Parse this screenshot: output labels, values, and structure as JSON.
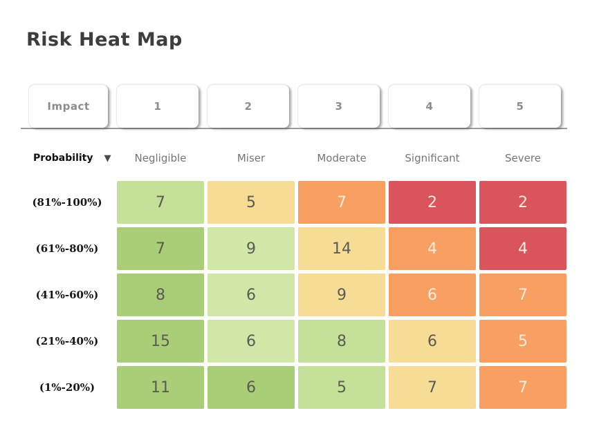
{
  "title": "Risk Heat Map",
  "tabs": [
    {
      "label": "Impact"
    },
    {
      "label": "1"
    },
    {
      "label": "2"
    },
    {
      "label": "3"
    },
    {
      "label": "4"
    },
    {
      "label": "5"
    }
  ],
  "probability": {
    "label": "Probability",
    "sort_icon": "down-triangle",
    "sort_glyph": "▼"
  },
  "colors": {
    "green_dark": "#a9ce77",
    "green_mid": "#c5e098",
    "green_light": "#d0e7a8",
    "yellow": "#f6dc95",
    "orange": "#f8a061",
    "red": "#d9545c",
    "text_dark": "#5b5b52",
    "text_light": "#f7ecdf",
    "tab_line": "#9b9b9b"
  },
  "chart_data": {
    "type": "heatmap",
    "title": "Risk Heat Map",
    "x_axis_label": "Impact",
    "y_axis_label": "Probability",
    "impact_levels": [
      {
        "value": "1",
        "label": "Negligible"
      },
      {
        "value": "2",
        "label": "Miser"
      },
      {
        "value": "3",
        "label": "Moderate"
      },
      {
        "value": "4",
        "label": "Significant"
      },
      {
        "value": "5",
        "label": "Severe"
      }
    ],
    "probability_levels": [
      "(81%-100%)",
      "(61%-80%)",
      "(41%-60%)",
      "(21%-40%)",
      "(1%-20%)"
    ],
    "values": [
      [
        7,
        5,
        7,
        2,
        2
      ],
      [
        7,
        9,
        14,
        4,
        4
      ],
      [
        8,
        6,
        9,
        6,
        7
      ],
      [
        15,
        6,
        8,
        6,
        5
      ],
      [
        11,
        6,
        5,
        7,
        7
      ]
    ],
    "cell_colors": [
      [
        "green_mid",
        "yellow",
        "orange",
        "red",
        "red"
      ],
      [
        "green_dark",
        "green_light",
        "yellow",
        "orange",
        "red"
      ],
      [
        "green_dark",
        "green_light",
        "yellow",
        "orange",
        "orange"
      ],
      [
        "green_dark",
        "green_light",
        "green_mid",
        "yellow",
        "orange"
      ],
      [
        "green_dark",
        "green_dark",
        "green_mid",
        "yellow",
        "orange"
      ]
    ],
    "legend": "none",
    "grid": false
  }
}
